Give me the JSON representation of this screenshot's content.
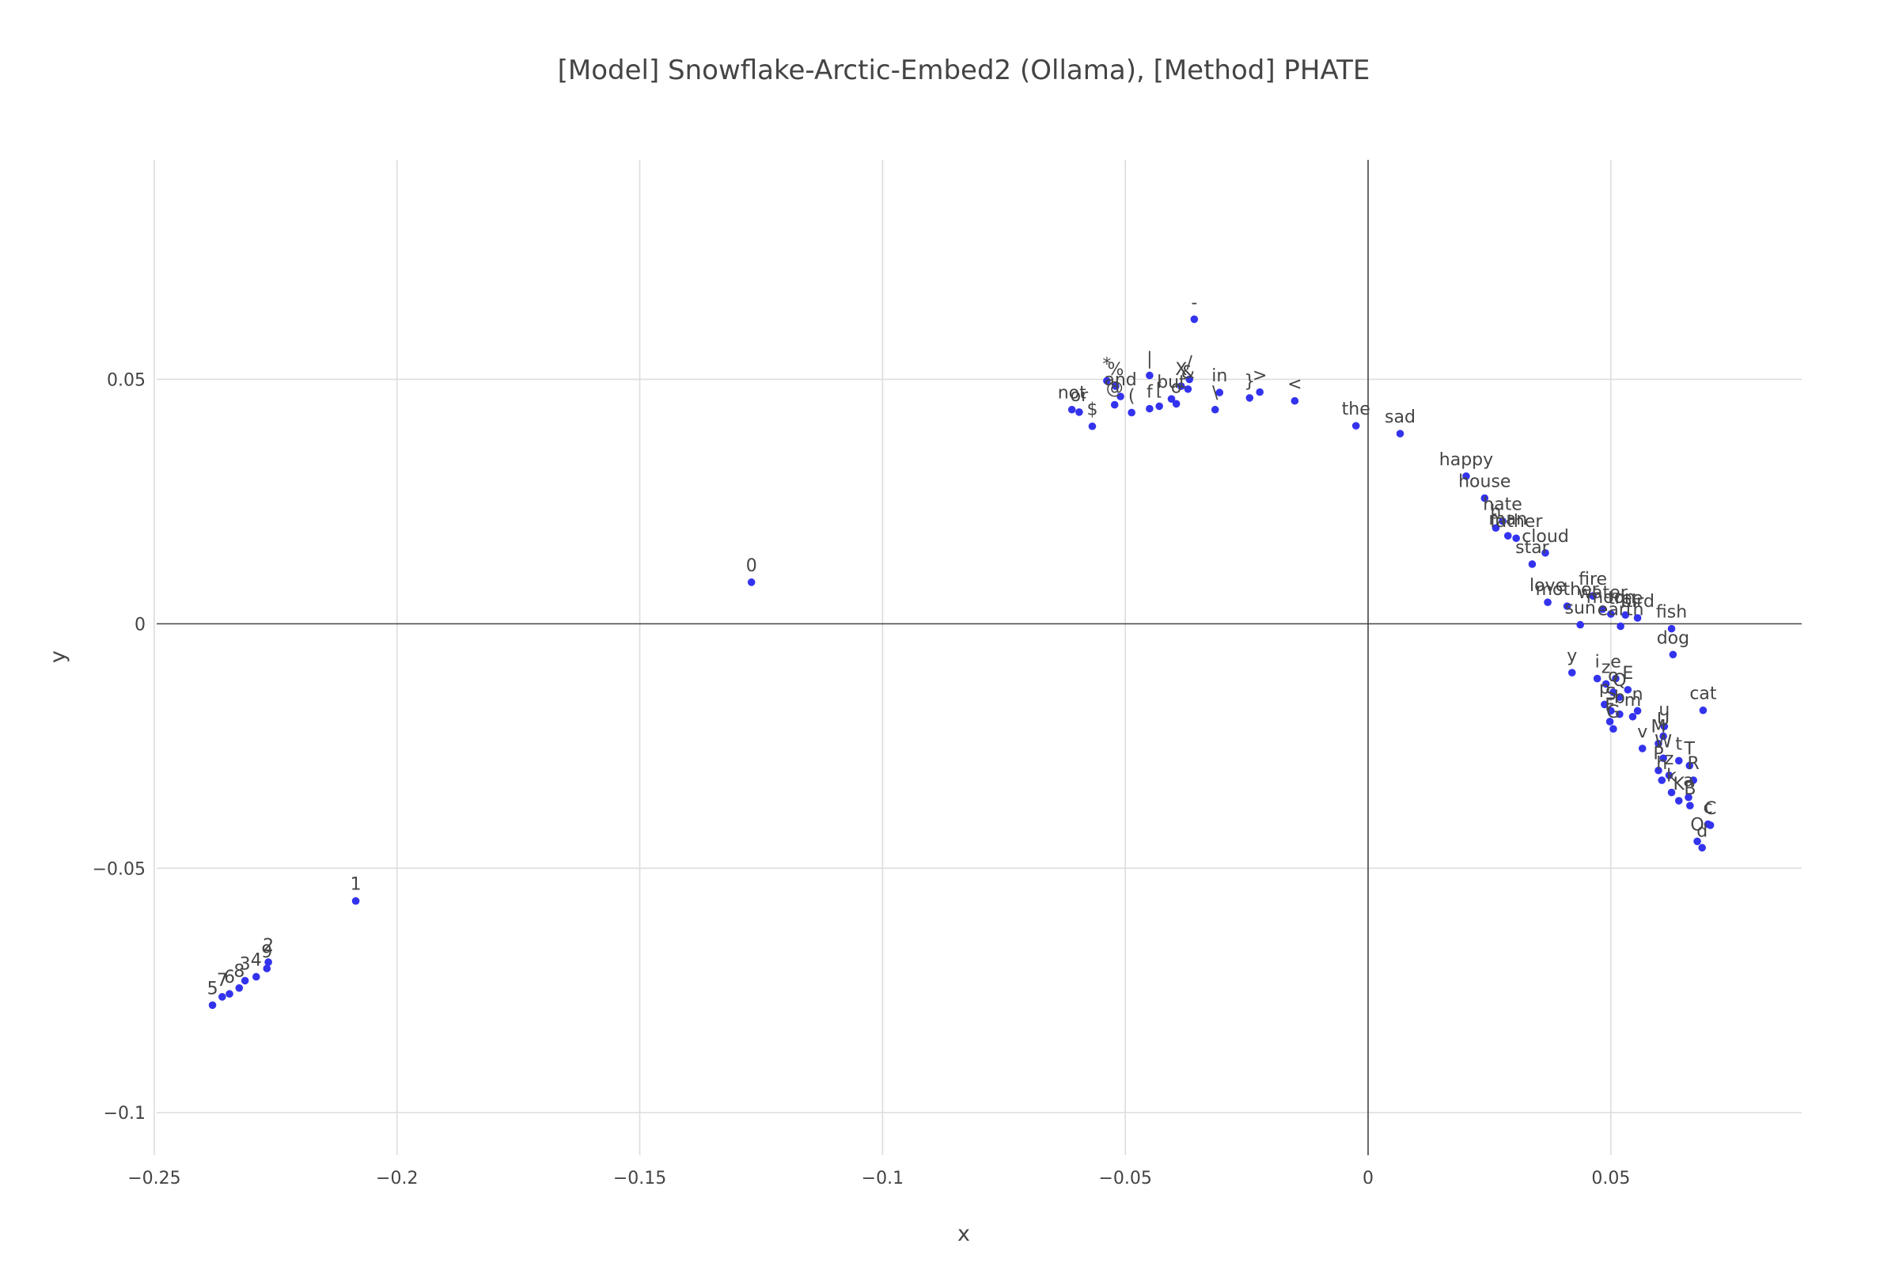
{
  "chart_data": {
    "type": "scatter",
    "title": "[Model] Snowflake-Arctic-Embed2 (Ollama), [Method] PHATE",
    "xlabel": "x",
    "ylabel": "y",
    "xlim": [
      -0.2495,
      0.0893
    ],
    "ylim": [
      -0.1087,
      0.0949
    ],
    "xticks": [
      -0.25,
      -0.2,
      -0.15,
      -0.1,
      -0.05,
      0,
      0.05
    ],
    "xtick_labels": [
      "−0.25",
      "−0.2",
      "−0.15",
      "−0.1",
      "−0.05",
      "0",
      "0.05"
    ],
    "yticks": [
      -0.1,
      -0.05,
      0,
      0.05
    ],
    "ytick_labels": [
      "−0.1",
      "−0.05",
      "0",
      "0.05"
    ],
    "grid": true,
    "marker_color": "#3333ee",
    "points": [
      {
        "label": "-",
        "x": -0.0358,
        "y": 0.0623
      },
      {
        "label": "|",
        "x": -0.045,
        "y": 0.0508
      },
      {
        "label": "X",
        "x": -0.0385,
        "y": 0.0486
      },
      {
        "label": "/",
        "x": -0.0368,
        "y": 0.05
      },
      {
        "label": "&",
        "x": -0.0371,
        "y": 0.048
      },
      {
        "label": "in",
        "x": -0.0306,
        "y": 0.0473
      },
      {
        "label": "}",
        "x": -0.0244,
        "y": 0.0462
      },
      {
        "label": ">",
        "x": -0.0223,
        "y": 0.0474
      },
      {
        "label": "<",
        "x": -0.0151,
        "y": 0.0456
      },
      {
        "label": "*",
        "x": -0.0538,
        "y": 0.0497
      },
      {
        "label": "%",
        "x": -0.052,
        "y": 0.0486
      },
      {
        "label": "and",
        "x": -0.051,
        "y": 0.0465
      },
      {
        "label": "not",
        "x": -0.061,
        "y": 0.0438
      },
      {
        "label": "or",
        "x": -0.0595,
        "y": 0.0433
      },
      {
        "label": "$",
        "x": -0.0568,
        "y": 0.0404
      },
      {
        "label": "@",
        "x": -0.0522,
        "y": 0.0448
      },
      {
        "label": "(",
        "x": -0.0487,
        "y": 0.0432
      },
      {
        "label": "f",
        "x": -0.045,
        "y": 0.044
      },
      {
        "label": "[",
        "x": -0.043,
        "y": 0.0445
      },
      {
        "label": "but",
        "x": -0.0405,
        "y": 0.046
      },
      {
        "label": "o",
        "x": -0.0395,
        "y": 0.045
      },
      {
        "label": "\\",
        "x": -0.0315,
        "y": 0.0438
      },
      {
        "label": "the",
        "x": -0.0025,
        "y": 0.0405
      },
      {
        "label": "sad",
        "x": 0.0066,
        "y": 0.0389
      },
      {
        "label": "happy",
        "x": 0.0202,
        "y": 0.0302
      },
      {
        "label": "house",
        "x": 0.024,
        "y": 0.0257
      },
      {
        "label": "hate",
        "x": 0.0277,
        "y": 0.021
      },
      {
        "label": "h",
        "x": 0.0263,
        "y": 0.0196
      },
      {
        "label": "man",
        "x": 0.0288,
        "y": 0.018
      },
      {
        "label": "father",
        "x": 0.0305,
        "y": 0.0175
      },
      {
        "label": "cloud",
        "x": 0.0365,
        "y": 0.0145
      },
      {
        "label": "star",
        "x": 0.0338,
        "y": 0.0122
      },
      {
        "label": "fire",
        "x": 0.0463,
        "y": 0.0057
      },
      {
        "label": "love",
        "x": 0.037,
        "y": 0.0044
      },
      {
        "label": "mother",
        "x": 0.041,
        "y": 0.0036
      },
      {
        "label": "water",
        "x": 0.0483,
        "y": 0.003
      },
      {
        "label": "moon",
        "x": 0.05,
        "y": 0.002
      },
      {
        "label": "tree",
        "x": 0.053,
        "y": 0.0018
      },
      {
        "label": "bird",
        "x": 0.0555,
        "y": 0.0012
      },
      {
        "label": "sun",
        "x": 0.0437,
        "y": -0.0002
      },
      {
        "label": "earth",
        "x": 0.052,
        "y": -0.0005
      },
      {
        "label": "fish",
        "x": 0.0625,
        "y": -0.001
      },
      {
        "label": "dog",
        "x": 0.0628,
        "y": -0.0063
      },
      {
        "label": "cat",
        "x": 0.069,
        "y": -0.0177
      },
      {
        "label": "y",
        "x": 0.042,
        "y": -0.01
      },
      {
        "label": "i",
        "x": 0.0472,
        "y": -0.0112
      },
      {
        "label": "z",
        "x": 0.049,
        "y": -0.0123
      },
      {
        "label": "e",
        "x": 0.051,
        "y": -0.0112
      },
      {
        "label": "o",
        "x": 0.0505,
        "y": -0.014
      },
      {
        "label": "Q",
        "x": 0.0518,
        "y": -0.015
      },
      {
        "label": "E",
        "x": 0.0535,
        "y": -0.0135
      },
      {
        "label": "p",
        "x": 0.0487,
        "y": -0.0165
      },
      {
        "label": "S",
        "x": 0.05,
        "y": -0.0178
      },
      {
        "label": "b",
        "x": 0.0518,
        "y": -0.0185
      },
      {
        "label": "m",
        "x": 0.0545,
        "y": -0.019
      },
      {
        "label": "n",
        "x": 0.0555,
        "y": -0.0178
      },
      {
        "label": "F",
        "x": 0.0498,
        "y": -0.02
      },
      {
        "label": "G",
        "x": 0.0505,
        "y": -0.0215
      },
      {
        "label": "u",
        "x": 0.061,
        "y": -0.021
      },
      {
        "label": "U",
        "x": 0.0608,
        "y": -0.023
      },
      {
        "label": "v",
        "x": 0.0565,
        "y": -0.0255
      },
      {
        "label": "M",
        "x": 0.0598,
        "y": -0.0245
      },
      {
        "label": "W",
        "x": 0.0608,
        "y": -0.0275
      },
      {
        "label": "t",
        "x": 0.064,
        "y": -0.028
      },
      {
        "label": "T",
        "x": 0.0662,
        "y": -0.029
      },
      {
        "label": "P",
        "x": 0.0598,
        "y": -0.03
      },
      {
        "label": "z",
        "x": 0.062,
        "y": -0.031
      },
      {
        "label": "h",
        "x": 0.0605,
        "y": -0.032
      },
      {
        "label": "R",
        "x": 0.067,
        "y": -0.032
      },
      {
        "label": "k",
        "x": 0.0625,
        "y": -0.0345
      },
      {
        "label": "K",
        "x": 0.064,
        "y": -0.0362
      },
      {
        "label": "a",
        "x": 0.066,
        "y": -0.0355
      },
      {
        "label": "B",
        "x": 0.0663,
        "y": -0.0372
      },
      {
        "label": "c",
        "x": 0.07,
        "y": -0.041
      },
      {
        "label": "C",
        "x": 0.0705,
        "y": -0.0412
      },
      {
        "label": "O",
        "x": 0.0678,
        "y": -0.0445
      },
      {
        "label": "d",
        "x": 0.0688,
        "y": -0.0458
      },
      {
        "label": "0",
        "x": -0.127,
        "y": 0.0085
      },
      {
        "label": "1",
        "x": -0.2085,
        "y": -0.0567
      },
      {
        "label": "2",
        "x": -0.2265,
        "y": -0.0692
      },
      {
        "label": "9",
        "x": -0.2268,
        "y": -0.0705
      },
      {
        "label": "4",
        "x": -0.229,
        "y": -0.0722
      },
      {
        "label": "3",
        "x": -0.2313,
        "y": -0.073
      },
      {
        "label": "8",
        "x": -0.2325,
        "y": -0.0745
      },
      {
        "label": "6",
        "x": -0.2345,
        "y": -0.0757
      },
      {
        "label": "7",
        "x": -0.236,
        "y": -0.0763
      },
      {
        "label": "5",
        "x": -0.238,
        "y": -0.078
      }
    ]
  }
}
